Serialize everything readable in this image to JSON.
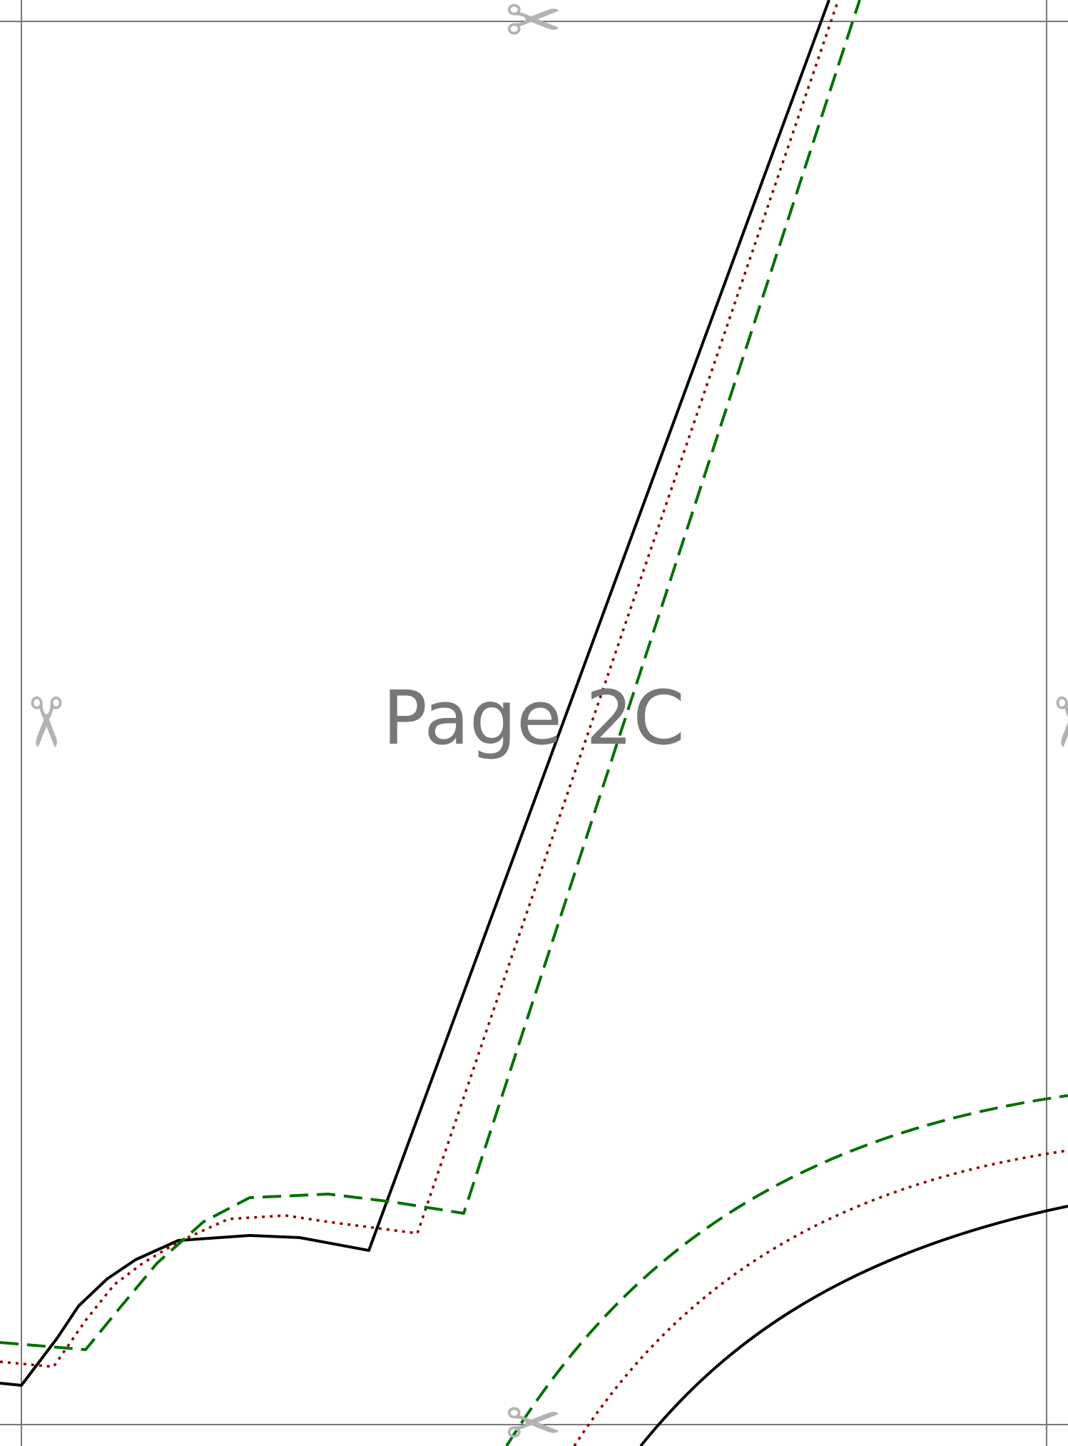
{
  "page": {
    "label": "Page 2C"
  },
  "colors": {
    "background": "#ffffff",
    "trim_border": "#777777",
    "label_text": "#777777",
    "scissors": "#b3b3b3",
    "cut_line": "#000000",
    "stitch_line": "#8b0000",
    "seam_allowance_line": "#007000"
  },
  "icons": {
    "scissors_glyph": "✂",
    "scissors_names": [
      "scissors-icon-top",
      "scissors-icon-left",
      "scissors-icon-right",
      "scissors-icon-bottom"
    ]
  },
  "line_styles": {
    "cut_line": "solid",
    "stitch_line": "dotted",
    "seam_allowance_line": "dashed"
  }
}
